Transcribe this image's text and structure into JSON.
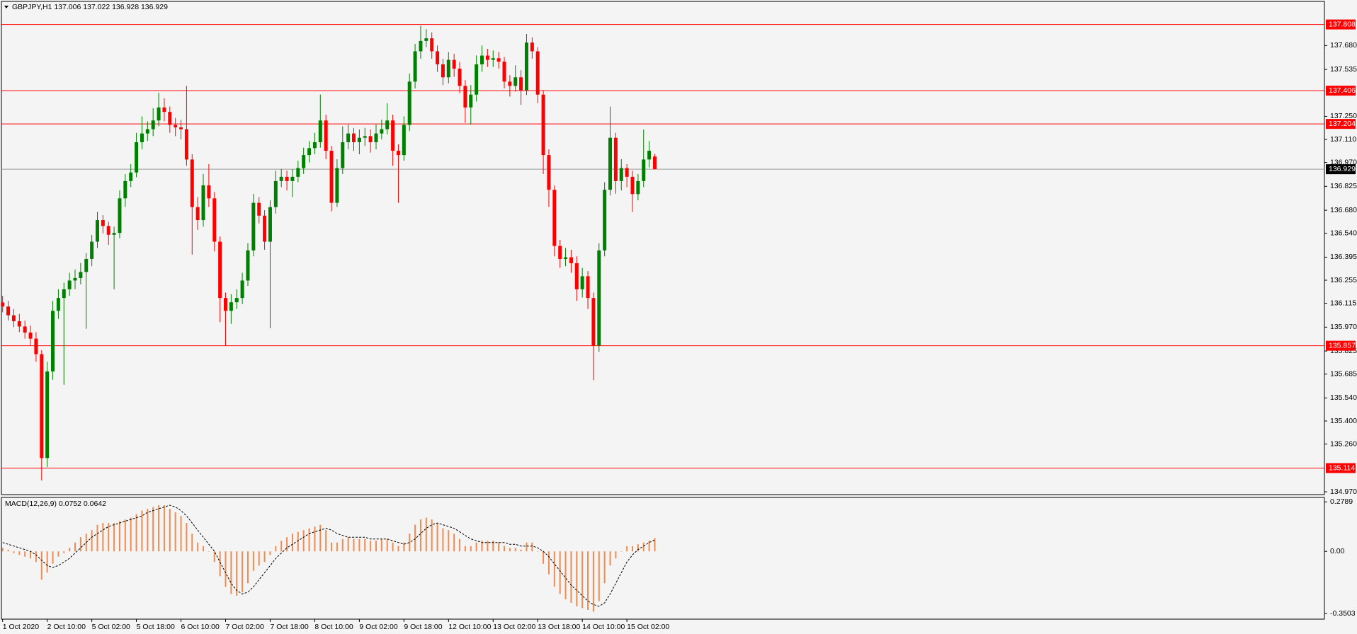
{
  "chart_data": {
    "type": "candlestick",
    "header": "GBPJPY,H1  137.006 137.022 136.928 136.929",
    "up_color": "#008000",
    "down_color": "#ff0000",
    "level_color": "#ff0000",
    "last_color": "#000000",
    "categories": [
      "1 Oct 2020",
      null,
      null,
      null,
      null,
      null,
      null,
      null,
      "2 Oct 10:00",
      null,
      null,
      null,
      null,
      null,
      null,
      null,
      "5 Oct 02:00",
      null,
      null,
      null,
      null,
      null,
      null,
      null,
      "5 Oct 18:00",
      null,
      null,
      null,
      null,
      null,
      null,
      null,
      "6 Oct 10:00",
      null,
      null,
      null,
      null,
      null,
      null,
      null,
      "7 Oct 02:00",
      null,
      null,
      null,
      null,
      null,
      null,
      null,
      "7 Oct 18:00",
      null,
      null,
      null,
      null,
      null,
      null,
      null,
      "8 Oct 10:00",
      null,
      null,
      null,
      null,
      null,
      null,
      null,
      "9 Oct 02:00",
      null,
      null,
      null,
      null,
      null,
      null,
      null,
      "9 Oct 18:00",
      null,
      null,
      null,
      null,
      null,
      null,
      null,
      "12 Oct 10:00",
      null,
      null,
      null,
      null,
      null,
      null,
      null,
      "13 Oct 02:00",
      null,
      null,
      null,
      null,
      null,
      null,
      null,
      "13 Oct 18:00",
      null,
      null,
      null,
      null,
      null,
      null,
      null,
      "14 Oct 10:00",
      null,
      null,
      null,
      null,
      null,
      null,
      null,
      "15 Oct 02:00",
      null,
      null,
      null,
      null,
      null
    ],
    "open": [
      136.12,
      136.095,
      136.042,
      136.006,
      135.974,
      135.937,
      135.9,
      135.806,
      135.175,
      135.701,
      136.069,
      136.147,
      136.2,
      136.253,
      136.268,
      136.305,
      136.384,
      136.489,
      136.62,
      136.584,
      136.531,
      136.542,
      136.752,
      136.857,
      136.909,
      137.093,
      137.146,
      137.172,
      137.225,
      137.304,
      137.277,
      137.198,
      137.183,
      137.172,
      136.988,
      136.699,
      136.62,
      136.831,
      136.752,
      136.489,
      136.147,
      136.069,
      136.121,
      136.147,
      136.253,
      136.436,
      136.725,
      136.647,
      136.489,
      136.699,
      136.857,
      136.883,
      136.857,
      136.883,
      136.936,
      137.015,
      137.057,
      137.093,
      137.225,
      137.041,
      136.725,
      136.936,
      137.093,
      137.146,
      137.093,
      137.12,
      137.13,
      137.093,
      137.146,
      137.172,
      137.225,
      137.041,
      137.015,
      137.198,
      137.461,
      137.645,
      137.708,
      137.724,
      137.645,
      137.566,
      137.487,
      137.593,
      137.54,
      137.435,
      137.304,
      137.382,
      137.566,
      137.619,
      137.593,
      137.603,
      137.582,
      137.461,
      137.435,
      137.487,
      137.409,
      137.698,
      137.645,
      137.382,
      137.015,
      136.804,
      136.463,
      136.384,
      136.394,
      136.358,
      136.2,
      136.279,
      136.147,
      135.858,
      136.436,
      136.804,
      137.12,
      136.857,
      136.936,
      136.883,
      136.778,
      136.857,
      136.988,
      137.006
    ],
    "high": [
      136.16,
      136.13,
      136.08,
      136.05,
      136.01,
      135.98,
      135.94,
      135.83,
      135.76,
      136.13,
      136.2,
      136.24,
      136.3,
      136.32,
      136.36,
      136.42,
      136.53,
      136.67,
      136.65,
      136.61,
      136.58,
      136.8,
      136.9,
      136.96,
      137.15,
      137.25,
      137.22,
      137.3,
      137.393,
      137.36,
      137.31,
      137.24,
      137.23,
      137.435,
      137.02,
      136.76,
      136.9,
      136.96,
      136.79,
      136.52,
      136.18,
      136.17,
      136.2,
      136.3,
      136.48,
      136.78,
      136.76,
      136.68,
      136.74,
      136.92,
      136.93,
      136.92,
      136.93,
      136.98,
      137.06,
      137.1,
      137.15,
      137.382,
      137.26,
      137.07,
      136.99,
      137.19,
      137.2,
      137.18,
      137.17,
      137.18,
      137.17,
      137.2,
      137.23,
      137.33,
      137.26,
      137.08,
      137.25,
      137.51,
      137.69,
      137.8,
      137.78,
      137.76,
      137.68,
      137.6,
      137.64,
      137.63,
      137.58,
      137.47,
      137.44,
      137.62,
      137.68,
      137.66,
      137.65,
      137.64,
      137.61,
      137.5,
      137.56,
      137.53,
      137.75,
      137.73,
      137.67,
      137.41,
      137.05,
      136.83,
      136.5,
      136.45,
      136.44,
      136.4,
      136.33,
      136.31,
      136.18,
      136.48,
      136.85,
      137.309,
      137.15,
      136.99,
      136.96,
      136.92,
      136.9,
      137.17,
      137.1,
      137.022
    ],
    "low": [
      136.06,
      136.01,
      135.97,
      135.94,
      135.9,
      135.86,
      135.76,
      135.039,
      135.12,
      135.65,
      136.02,
      135.62,
      136.16,
      136.2,
      136.23,
      135.96,
      136.34,
      136.45,
      136.54,
      136.47,
      136.2,
      136.51,
      136.7,
      136.82,
      136.88,
      137.05,
      137.1,
      137.13,
      137.19,
      137.22,
      137.15,
      137.13,
      137.11,
      136.95,
      136.41,
      136.56,
      136.58,
      136.7,
      136.43,
      136.0,
      135.858,
      135.99,
      136.08,
      136.11,
      136.22,
      136.4,
      136.6,
      136.44,
      135.964,
      136.66,
      136.82,
      136.8,
      136.76,
      136.85,
      136.9,
      136.97,
      137.02,
      137.06,
      136.99,
      136.673,
      136.7,
      136.9,
      137.05,
      137.04,
      137.02,
      137.07,
      137.03,
      137.05,
      137.11,
      137.14,
      136.95,
      136.725,
      136.98,
      137.16,
      137.42,
      137.6,
      137.67,
      137.6,
      137.52,
      137.44,
      137.45,
      137.49,
      137.39,
      137.21,
      137.2,
      137.34,
      137.52,
      137.55,
      137.55,
      137.54,
      137.42,
      137.37,
      137.4,
      137.32,
      137.38,
      137.6,
      137.33,
      136.9,
      136.7,
      136.4,
      136.33,
      136.34,
      136.3,
      136.13,
      136.15,
      136.08,
      135.648,
      135.82,
      136.4,
      136.77,
      136.78,
      136.8,
      136.82,
      136.67,
      136.74,
      136.82,
      136.94,
      136.928
    ],
    "close": [
      136.095,
      136.042,
      136.006,
      135.974,
      135.937,
      135.9,
      135.806,
      135.175,
      135.701,
      136.069,
      136.147,
      136.2,
      136.253,
      136.268,
      136.305,
      136.384,
      136.489,
      136.62,
      136.584,
      136.531,
      136.542,
      136.752,
      136.857,
      136.909,
      137.093,
      137.146,
      137.172,
      137.225,
      137.304,
      137.277,
      137.198,
      137.183,
      137.172,
      136.988,
      136.699,
      136.62,
      136.831,
      136.752,
      136.489,
      136.147,
      136.069,
      136.121,
      136.147,
      136.253,
      136.436,
      136.725,
      136.647,
      136.489,
      136.699,
      136.857,
      136.883,
      136.857,
      136.883,
      136.936,
      137.015,
      137.057,
      137.093,
      137.225,
      137.041,
      136.725,
      136.936,
      137.093,
      137.146,
      137.093,
      137.12,
      137.13,
      137.093,
      137.146,
      137.172,
      137.225,
      137.041,
      137.015,
      137.198,
      137.461,
      137.645,
      137.708,
      137.724,
      137.645,
      137.566,
      137.487,
      137.593,
      137.54,
      137.435,
      137.304,
      137.382,
      137.566,
      137.619,
      137.593,
      137.603,
      137.582,
      137.461,
      137.435,
      137.487,
      137.409,
      137.698,
      137.645,
      137.382,
      137.015,
      136.804,
      136.463,
      136.384,
      136.394,
      136.358,
      136.2,
      136.279,
      136.147,
      135.858,
      136.436,
      136.804,
      137.12,
      136.857,
      136.936,
      136.883,
      136.778,
      136.857,
      136.988,
      137.041,
      136.929
    ],
    "ylim": [
      134.953,
      137.948
    ],
    "yticks": [
      {
        "value": 137.68,
        "label": "137.680"
      },
      137.535,
      {
        "value": 137.25,
        "label": "137.250"
      },
      {
        "value": 137.11,
        "label": "137.110"
      },
      {
        "value": 136.97,
        "label": "136.970"
      },
      136.825,
      {
        "value": 136.68,
        "label": "136.680"
      },
      {
        "value": 136.54,
        "label": "136.540"
      },
      136.395,
      136.255,
      136.115,
      {
        "value": 135.97,
        "label": "135.970"
      },
      135.825,
      135.685,
      {
        "value": 135.54,
        "label": "135.540"
      },
      {
        "value": 135.4,
        "label": "135.400"
      },
      {
        "value": 135.26,
        "label": "135.260"
      },
      {
        "value": 134.97,
        "label": "134.970"
      }
    ],
    "levels": [
      137.808,
      137.406,
      137.204,
      135.857,
      135.114
    ],
    "last": 136.929,
    "macd": {
      "title": "MACD(12,26,9) 0.0752 0.0642",
      "color": "#f08c50",
      "signal_color": "#000000",
      "ylim": [
        -0.382,
        0.3
      ],
      "yticks": [
        0.2789,
        {
          "value": 0,
          "label": "0.00"
        },
        -0.3503
      ],
      "histogram": [
        0.02,
        0.01,
        -0.01,
        -0.02,
        -0.03,
        -0.04,
        -0.06,
        -0.16,
        -0.12,
        -0.07,
        -0.03,
        -0.01,
        0.02,
        0.05,
        0.08,
        0.1,
        0.12,
        0.15,
        0.16,
        0.16,
        0.16,
        0.17,
        0.18,
        0.19,
        0.21,
        0.23,
        0.24,
        0.25,
        0.26,
        0.26,
        0.24,
        0.22,
        0.2,
        0.16,
        0.1,
        0.05,
        0.03,
        0.0,
        -0.06,
        -0.14,
        -0.2,
        -0.24,
        -0.25,
        -0.23,
        -0.18,
        -0.11,
        -0.08,
        -0.06,
        -0.02,
        0.03,
        0.06,
        0.08,
        0.1,
        0.11,
        0.12,
        0.13,
        0.14,
        0.15,
        0.12,
        0.05,
        0.05,
        0.07,
        0.08,
        0.07,
        0.07,
        0.07,
        0.06,
        0.06,
        0.07,
        0.07,
        0.05,
        0.03,
        0.05,
        0.1,
        0.15,
        0.18,
        0.19,
        0.18,
        0.16,
        0.13,
        0.12,
        0.1,
        0.07,
        0.03,
        0.03,
        0.05,
        0.06,
        0.06,
        0.06,
        0.05,
        0.03,
        0.02,
        0.02,
        0.01,
        0.05,
        0.05,
        0.0,
        -0.07,
        -0.13,
        -0.2,
        -0.24,
        -0.27,
        -0.29,
        -0.31,
        -0.32,
        -0.33,
        -0.34,
        -0.28,
        -0.18,
        -0.08,
        -0.04,
        0.0,
        0.03,
        0.03,
        0.04,
        0.05,
        0.06,
        0.0752
      ],
      "signal": [
        0.05,
        0.04,
        0.03,
        0.02,
        0.01,
        0.0,
        -0.02,
        -0.05,
        -0.08,
        -0.09,
        -0.08,
        -0.06,
        -0.04,
        -0.01,
        0.02,
        0.05,
        0.08,
        0.1,
        0.12,
        0.14,
        0.15,
        0.16,
        0.17,
        0.18,
        0.19,
        0.2,
        0.22,
        0.23,
        0.24,
        0.25,
        0.26,
        0.25,
        0.23,
        0.2,
        0.16,
        0.12,
        0.08,
        0.04,
        0.0,
        -0.06,
        -0.12,
        -0.18,
        -0.22,
        -0.24,
        -0.23,
        -0.2,
        -0.16,
        -0.12,
        -0.08,
        -0.04,
        -0.01,
        0.02,
        0.04,
        0.06,
        0.08,
        0.1,
        0.11,
        0.12,
        0.13,
        0.12,
        0.1,
        0.09,
        0.08,
        0.08,
        0.08,
        0.08,
        0.07,
        0.07,
        0.07,
        0.07,
        0.06,
        0.05,
        0.04,
        0.05,
        0.07,
        0.1,
        0.13,
        0.15,
        0.16,
        0.15,
        0.14,
        0.13,
        0.11,
        0.09,
        0.07,
        0.06,
        0.05,
        0.05,
        0.05,
        0.05,
        0.05,
        0.04,
        0.04,
        0.03,
        0.03,
        0.03,
        0.02,
        0.0,
        -0.03,
        -0.07,
        -0.11,
        -0.15,
        -0.19,
        -0.22,
        -0.25,
        -0.28,
        -0.3,
        -0.31,
        -0.29,
        -0.24,
        -0.18,
        -0.12,
        -0.06,
        -0.02,
        0.01,
        0.03,
        0.05,
        0.0642
      ]
    }
  }
}
